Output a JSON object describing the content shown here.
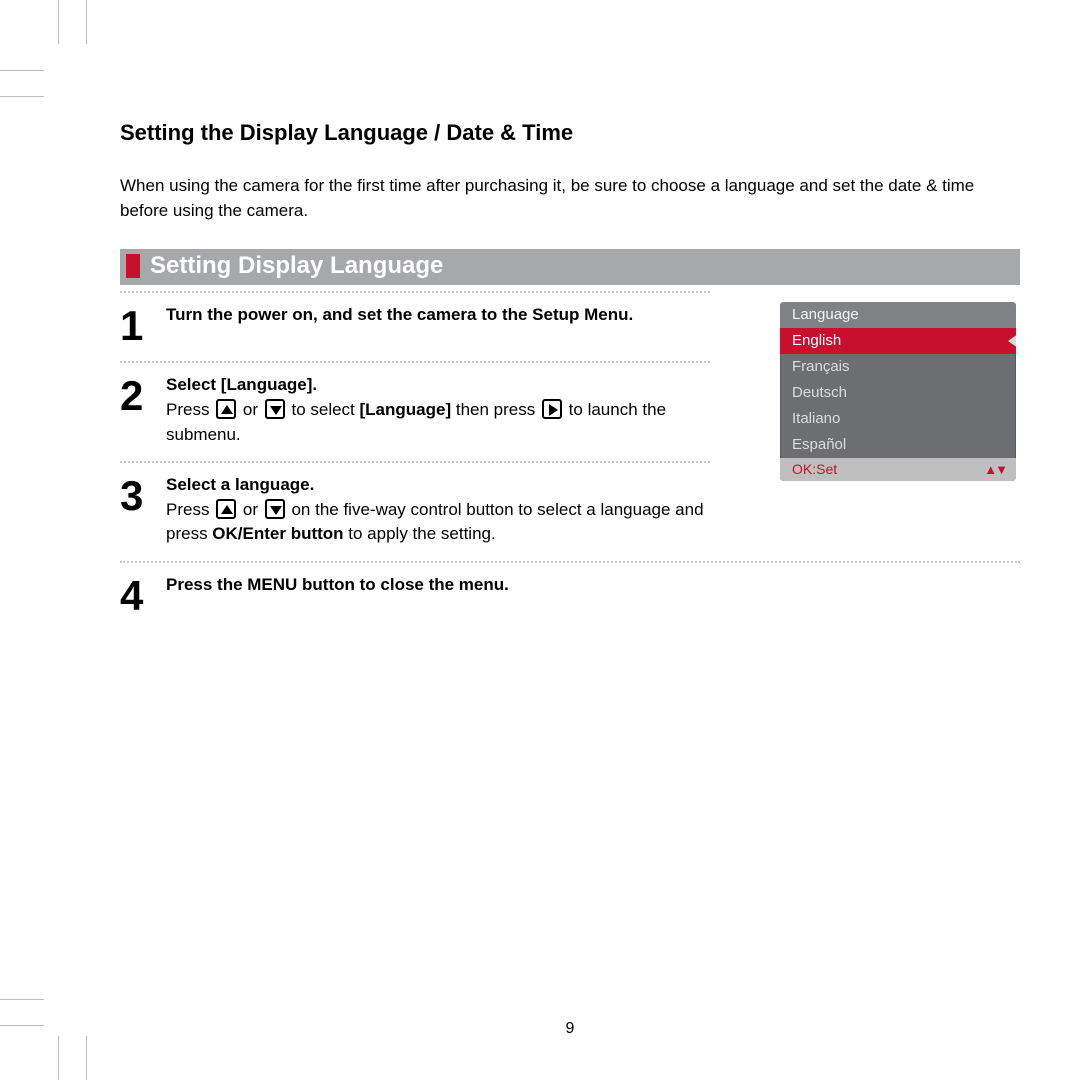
{
  "page_number": "9",
  "title": "Setting the Display Language / Date & Time",
  "intro": "When using the camera for the first time after purchasing it, be sure to choose a language and set the date & time before using the camera.",
  "section_header": "Setting Display Language",
  "colors": {
    "header_bg": "#a7a8aa",
    "accent_red": "#c8102e",
    "menu_bg": "#6d6e71",
    "menu_hdr_bg": "#808184",
    "menu_ftr_bg": "#bfbfbf",
    "dots": "#c9c9c9"
  },
  "steps": [
    {
      "num": "1",
      "bold": "Turn the power on, and set the camera to the Setup Menu.",
      "rest_parts": []
    },
    {
      "num": "2",
      "bold": "Select [Language].",
      "rest_parts": [
        {
          "t": "text",
          "v": "Press "
        },
        {
          "t": "icon",
          "v": "up"
        },
        {
          "t": "text",
          "v": " or "
        },
        {
          "t": "icon",
          "v": "down"
        },
        {
          "t": "text",
          "v": "  to select "
        },
        {
          "t": "bold",
          "v": "[Language]"
        },
        {
          "t": "text",
          "v": " then press "
        },
        {
          "t": "icon",
          "v": "right"
        },
        {
          "t": "text",
          "v": " to launch the submenu."
        }
      ]
    },
    {
      "num": "3",
      "bold": "Select a language.",
      "rest_parts": [
        {
          "t": "text",
          "v": "Press "
        },
        {
          "t": "icon",
          "v": "up"
        },
        {
          "t": "text",
          "v": " or "
        },
        {
          "t": "icon",
          "v": "down"
        },
        {
          "t": "text",
          "v": " on the five-way control button to select a language and press "
        },
        {
          "t": "bold",
          "v": "OK/Enter button"
        },
        {
          "t": "text",
          "v": " to apply the setting."
        }
      ]
    },
    {
      "num": "4",
      "bold": "Press the MENU button to close the menu.",
      "rest_parts": []
    }
  ],
  "step_divider_short": [
    true,
    true,
    true,
    false
  ],
  "lang_menu": {
    "header": "Language",
    "items": [
      "English",
      "Français",
      "Deutsch",
      "Italiano",
      "Español"
    ],
    "selected_index": 0,
    "footer": "OK:Set"
  }
}
